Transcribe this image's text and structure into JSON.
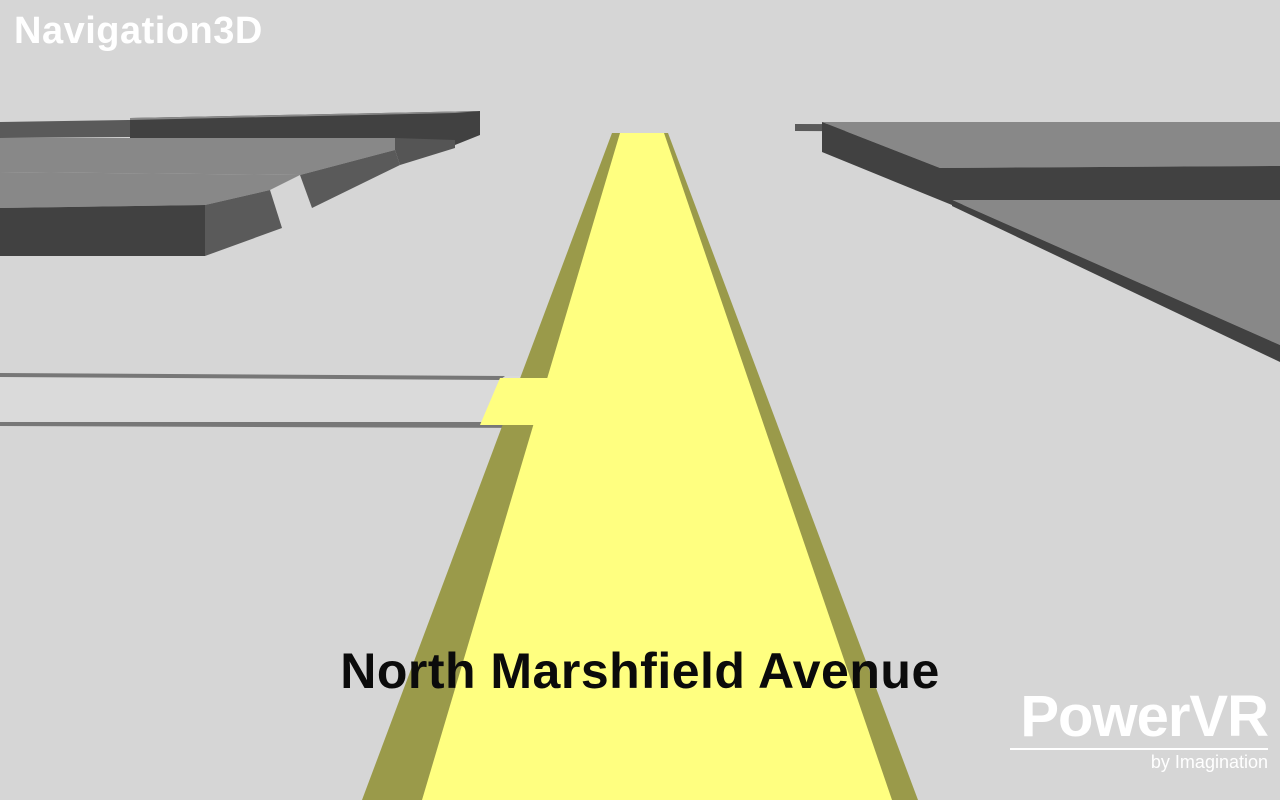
{
  "app": {
    "title": "Navigation3D"
  },
  "route": {
    "street_name": "North Marshfield Avenue"
  },
  "brand": {
    "name": "PowerVR",
    "tagline": "by Imagination"
  },
  "colors": {
    "ground": "#d6d6d6",
    "route_fill": "#ffff80",
    "route_edge": "#9a9a4a",
    "building_dark": "#414141",
    "building_roof": "#888888"
  }
}
